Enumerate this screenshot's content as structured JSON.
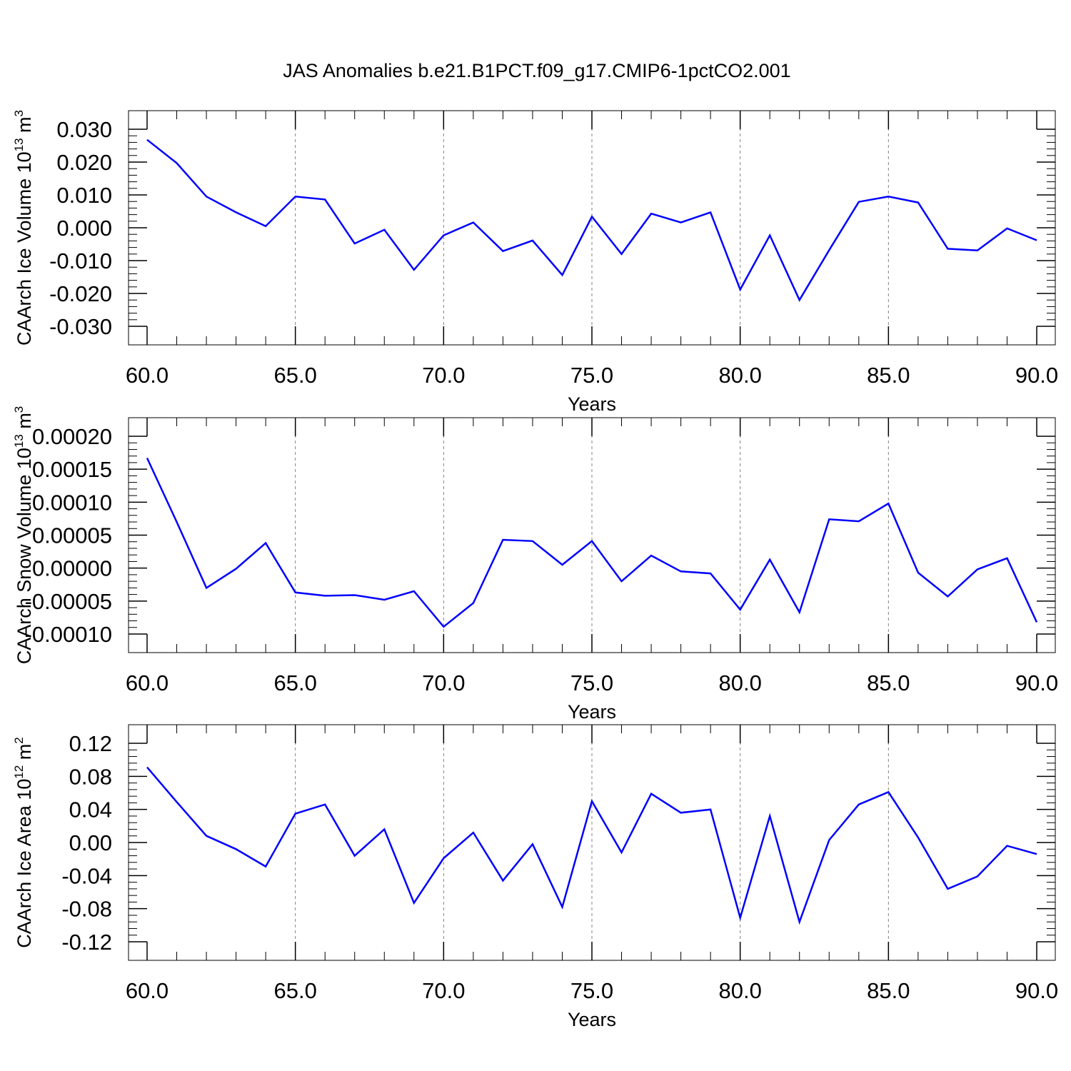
{
  "title": "JAS Anomalies b.e21.B1PCT.f09_g17.CMIP6-1pctCO2.001",
  "colors": {
    "line": "#0000ff",
    "axis": "#000000",
    "grid": "#808080"
  },
  "chart_data": [
    {
      "type": "line",
      "ylabel": {
        "text": "CAArch Ice Volume 10",
        "sup": "13",
        "unit": " m",
        "unit_sup": "3"
      },
      "xlabel": "Years",
      "xlim": [
        60,
        90
      ],
      "ylim": [
        -0.03,
        0.03
      ],
      "xticks": [
        "60.0",
        "65.0",
        "70.0",
        "75.0",
        "80.0",
        "85.0",
        "90.0"
      ],
      "yticks": [
        "-0.030",
        "-0.020",
        "-0.010",
        "0.000",
        "0.010",
        "0.020",
        "0.030"
      ],
      "grid": "vertical dashed at major x ticks",
      "x": [
        60,
        61,
        62,
        63,
        64,
        65,
        66,
        67,
        68,
        69,
        70,
        71,
        72,
        73,
        74,
        75,
        76,
        77,
        78,
        79,
        80,
        81,
        82,
        83,
        84,
        85,
        86,
        87,
        88,
        89,
        90
      ],
      "series": [
        {
          "values": [
            0.0268,
            0.0197,
            0.0095,
            0.0047,
            0.0005,
            0.0095,
            0.0086,
            -0.0048,
            -0.0006,
            -0.0128,
            -0.0023,
            0.0016,
            -0.0071,
            -0.0039,
            -0.0144,
            0.0034,
            -0.008,
            0.0043,
            0.0016,
            0.0047,
            -0.0188,
            -0.0023,
            -0.022,
            -0.0068,
            0.0079,
            0.0095,
            0.0077,
            -0.0064,
            -0.0069,
            -0.0002,
            -0.0038
          ]
        }
      ]
    },
    {
      "type": "line",
      "ylabel": {
        "text": "CAArch Snow Volume 10",
        "sup": "13",
        "unit": " m",
        "unit_sup": "3"
      },
      "xlabel": "Years",
      "xlim": [
        60,
        90
      ],
      "ylim": [
        -0.0001,
        0.0002
      ],
      "xticks": [
        "60.0",
        "65.0",
        "70.0",
        "75.0",
        "80.0",
        "85.0",
        "90.0"
      ],
      "yticks": [
        "-0.00010",
        "-0.00005",
        "0.00000",
        "0.00005",
        "0.00010",
        "0.00015",
        "0.00020"
      ],
      "grid": "vertical dashed at major x ticks",
      "x": [
        60,
        61,
        62,
        63,
        64,
        65,
        66,
        67,
        68,
        69,
        70,
        71,
        72,
        73,
        74,
        75,
        76,
        77,
        78,
        79,
        80,
        81,
        82,
        83,
        84,
        85,
        86,
        87,
        88,
        89,
        90
      ],
      "series": [
        {
          "values": [
            0.000167,
            7e-05,
            -3e-05,
            -1e-06,
            3.8e-05,
            -3.7e-05,
            -4.2e-05,
            -4.1e-05,
            -4.8e-05,
            -3.5e-05,
            -8.9e-05,
            -5.3e-05,
            4.3e-05,
            4.1e-05,
            5e-06,
            4.1e-05,
            -2e-05,
            1.9e-05,
            -5e-06,
            -8e-06,
            -6.3e-05,
            1.3e-05,
            -6.7e-05,
            7.4e-05,
            7.1e-05,
            9.8e-05,
            -7e-06,
            -4.3e-05,
            -2e-06,
            1.5e-05,
            -8.2e-05
          ]
        }
      ]
    },
    {
      "type": "line",
      "ylabel": {
        "text": "CAArch Ice Area 10",
        "sup": "12",
        "unit": " m",
        "unit_sup": "2"
      },
      "xlabel": "Years",
      "xlim": [
        60,
        90
      ],
      "ylim": [
        -0.12,
        0.12
      ],
      "xticks": [
        "60.0",
        "65.0",
        "70.0",
        "75.0",
        "80.0",
        "85.0",
        "90.0"
      ],
      "yticks": [
        "-0.12",
        "-0.08",
        "-0.04",
        "0.00",
        "0.04",
        "0.08",
        "0.12"
      ],
      "grid": "vertical dashed at major x ticks",
      "x": [
        60,
        61,
        62,
        63,
        64,
        65,
        66,
        67,
        68,
        69,
        70,
        71,
        72,
        73,
        74,
        75,
        76,
        77,
        78,
        79,
        80,
        81,
        82,
        83,
        84,
        85,
        86,
        87,
        88,
        89,
        90
      ],
      "series": [
        {
          "values": [
            0.091,
            0.049,
            0.008,
            -0.008,
            -0.029,
            0.035,
            0.046,
            -0.016,
            0.016,
            -0.073,
            -0.019,
            0.012,
            -0.046,
            -0.002,
            -0.078,
            0.05,
            -0.012,
            0.059,
            0.036,
            0.04,
            -0.091,
            0.032,
            -0.096,
            0.003,
            0.046,
            0.061,
            0.006,
            -0.056,
            -0.041,
            -0.004,
            -0.014
          ]
        }
      ]
    }
  ]
}
